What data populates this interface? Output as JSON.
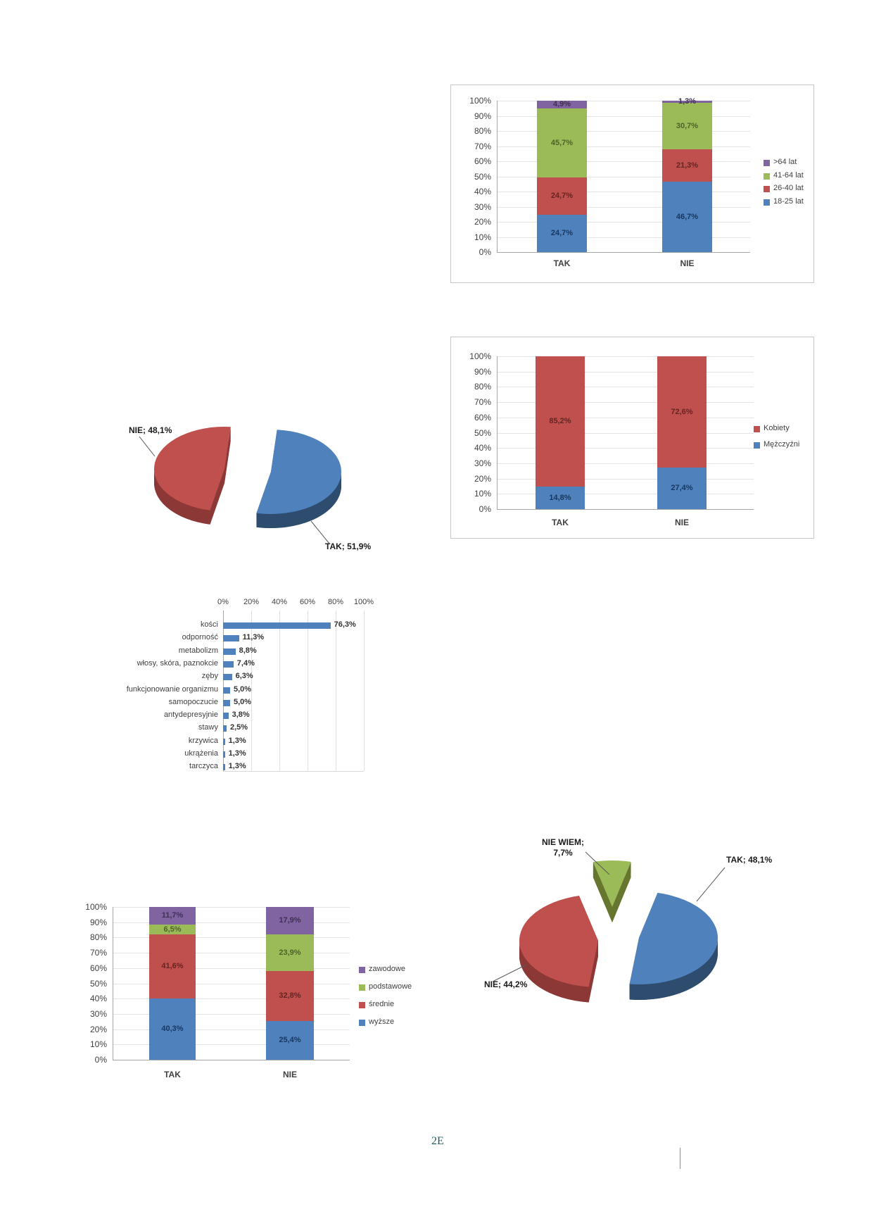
{
  "page": {
    "background": "#ffffff",
    "footer_text": "2E"
  },
  "colors": {
    "series_blue": "#4F81BD",
    "series_red": "#C0504D",
    "series_green": "#9BBB59",
    "series_purple": "#8064A2",
    "gridline": "#e4e4e4",
    "axis_text": "#404040"
  },
  "chart_data": [
    {
      "id": "age-structure",
      "type": "bar",
      "variant": "stacked-100",
      "legend_position": "right",
      "categories": [
        "TAK",
        "NIE"
      ],
      "yticks": [
        "100%",
        "90%",
        "80%",
        "70%",
        "60%",
        "50%",
        "40%",
        "30%",
        "20%",
        "10%",
        "0%"
      ],
      "series": [
        {
          "name": "18-25 lat",
          "color": "#4F81BD",
          "label_color": "#17375E",
          "values": [
            24.7,
            46.7
          ],
          "labels": [
            "24,7%",
            "46,7%"
          ]
        },
        {
          "name": "26-40 lat",
          "color": "#C0504D",
          "label_color": "#632523",
          "values": [
            24.7,
            21.3
          ],
          "labels": [
            "24,7%",
            "21,3%"
          ]
        },
        {
          "name": "41-64 lat",
          "color": "#9BBB59",
          "label_color": "#4F6228",
          "values": [
            45.7,
            30.7
          ],
          "labels": [
            "45,7%",
            "30,7%"
          ]
        },
        {
          "name": ">64 lat",
          "color": "#8064A2",
          "label_color": "#3F3151",
          "values": [
            4.9,
            1.3
          ],
          "labels": [
            "4,9%",
            "1,3%"
          ]
        }
      ]
    },
    {
      "id": "supplement-pie",
      "type": "pie",
      "slices": [
        {
          "name": "TAK",
          "value": 51.9,
          "label_lines": [
            "TAK; 51,9%"
          ],
          "color": "#4F81BD",
          "side_color": "#2E4D6E"
        },
        {
          "name": "NIE",
          "value": 48.1,
          "label_lines": [
            "NIE; 48,1%"
          ],
          "color": "#C0504D",
          "side_color": "#8C3836"
        }
      ]
    },
    {
      "id": "gender",
      "type": "bar",
      "variant": "stacked-100",
      "legend_position": "right",
      "categories": [
        "TAK",
        "NIE"
      ],
      "yticks": [
        "100%",
        "90%",
        "80%",
        "70%",
        "60%",
        "50%",
        "40%",
        "30%",
        "20%",
        "10%",
        "0%"
      ],
      "series": [
        {
          "name": "Mężczyźni",
          "color": "#4F81BD",
          "label_color": "#17375E",
          "values": [
            14.8,
            27.4
          ],
          "labels": [
            "14,8%",
            "27,4%"
          ]
        },
        {
          "name": "Kobiety",
          "color": "#C0504D",
          "label_color": "#632523",
          "values": [
            85.2,
            72.6
          ],
          "labels": [
            "85,2%",
            "72,6%"
          ]
        }
      ]
    },
    {
      "id": "benefits",
      "type": "bar",
      "orientation": "horizontal",
      "color": "#4F81BD",
      "xticks": [
        "0%",
        "20%",
        "40%",
        "60%",
        "80%",
        "100%"
      ],
      "categories": [
        "kości",
        "odporność",
        "metabolizm",
        "włosy, skóra, paznokcie",
        "zęby",
        "funkcjonowanie organizmu",
        "samopoczucie",
        "antydepresyjnie",
        "stawy",
        "krzywica",
        "ukrążenia",
        "tarczyca"
      ],
      "values": [
        76.3,
        11.3,
        8.8,
        7.4,
        6.3,
        5.0,
        5.0,
        3.8,
        2.5,
        1.3,
        1.3,
        1.3
      ],
      "labels": [
        "76,3%",
        "11,3%",
        "8,8%",
        "7,4%",
        "6,3%",
        "5,0%",
        "5,0%",
        "3,8%",
        "2,5%",
        "1,3%",
        "1,3%",
        "1,3%"
      ]
    },
    {
      "id": "education",
      "type": "bar",
      "variant": "stacked-100",
      "legend_position": "right",
      "categories": [
        "TAK",
        "NIE"
      ],
      "yticks": [
        "100%",
        "90%",
        "80%",
        "70%",
        "60%",
        "50%",
        "40%",
        "30%",
        "20%",
        "10%",
        "0%"
      ],
      "series": [
        {
          "name": "wyższe",
          "color": "#4F81BD",
          "label_color": "#17375E",
          "values": [
            40.3,
            25.4
          ],
          "labels": [
            "40,3%",
            "25,4%"
          ]
        },
        {
          "name": "średnie",
          "color": "#C0504D",
          "label_color": "#632523",
          "values": [
            41.6,
            32.8
          ],
          "labels": [
            "41,6%",
            "32,8%"
          ]
        },
        {
          "name": "podstawowe",
          "color": "#9BBB59",
          "label_color": "#4F6228",
          "values": [
            6.5,
            23.9
          ],
          "labels": [
            "6,5%",
            "23,9%"
          ]
        },
        {
          "name": "zawodowe",
          "color": "#8064A2",
          "label_color": "#3F3151",
          "values": [
            11.7,
            17.9
          ],
          "labels": [
            "11,7%",
            "17,9%"
          ]
        }
      ]
    },
    {
      "id": "knowledge-pie",
      "type": "pie",
      "slices": [
        {
          "name": "TAK",
          "value": 48.1,
          "label_lines": [
            "TAK; 48,1%"
          ],
          "color": "#4F81BD",
          "side_color": "#2E4D6E"
        },
        {
          "name": "NIE",
          "value": 44.2,
          "label_lines": [
            "NIE; 44,2%"
          ],
          "color": "#C0504D",
          "side_color": "#8C3836"
        },
        {
          "name": "NIE WIEM",
          "value": 7.7,
          "label_lines": [
            "NIE WIEM;",
            "7,7%"
          ],
          "color": "#9BBB59",
          "side_color": "#66762F"
        }
      ]
    }
  ]
}
